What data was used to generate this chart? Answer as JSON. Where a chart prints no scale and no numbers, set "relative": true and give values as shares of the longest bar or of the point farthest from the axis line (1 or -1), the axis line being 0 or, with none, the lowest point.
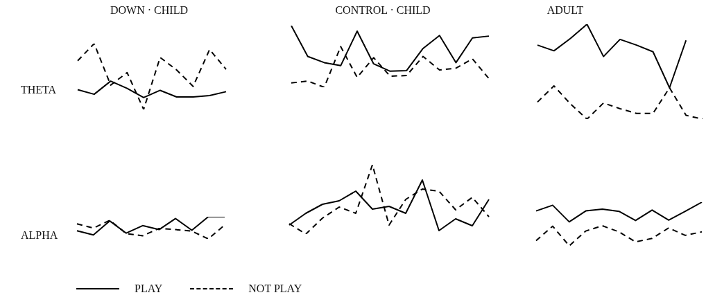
{
  "chart_data": [
    {
      "type": "line",
      "title": "DOWN · CHILD",
      "ylabel": "THETA",
      "relative": true,
      "categories": [
        null,
        null,
        null,
        null,
        null,
        null,
        null,
        null,
        null,
        null
      ],
      "series": [
        {
          "color": "#000000",
          "line_style": "solid",
          "values": [
            0.3,
            0.23,
            0.43,
            0.32,
            0.18,
            0.29,
            0.19,
            0.19,
            0.21,
            0.27
          ]
        },
        {
          "color": "#000000",
          "line_style": "dashed",
          "values": [
            0.74,
            1,
            0.37,
            0.56,
            0,
            0.79,
            0.6,
            0.35,
            0.91,
            0.61
          ]
        }
      ]
    },
    {
      "type": "line",
      "title": "CONTROL · CHILD",
      "relative": true,
      "categories": [
        null,
        null,
        null,
        null,
        null,
        null,
        null,
        null,
        null,
        null,
        null,
        null,
        null
      ],
      "series": [
        {
          "color": "#000000",
          "line_style": "solid",
          "values": [
            1,
            0.5,
            0.4,
            0.35,
            0.91,
            0.38,
            0.26,
            0.27,
            0.63,
            0.84,
            0.4,
            0.8,
            0.83
          ]
        },
        {
          "color": "#000000",
          "line_style": "dashed",
          "values": [
            0.07,
            0.1,
            0,
            0.66,
            0.16,
            0.48,
            0.18,
            0.19,
            0.5,
            0.28,
            0.31,
            0.46,
            0.14
          ]
        }
      ]
    },
    {
      "type": "line",
      "title": "ADULT",
      "relative": true,
      "categories": [
        null,
        null,
        null,
        null,
        null,
        null,
        null,
        null,
        null,
        null,
        null
      ],
      "series": [
        {
          "color": "#000000",
          "line_style": "solid",
          "values": [
            0.78,
            0.72,
            0.85,
            1,
            0.66,
            0.84,
            0.78,
            0.71,
            0.33,
            0.83,
            null
          ]
        },
        {
          "color": "#000000",
          "line_style": "dashed",
          "values": [
            0.18,
            0.35,
            0.16,
            0,
            0.17,
            0.11,
            0.06,
            0.06,
            0.33,
            0.04,
            0
          ]
        }
      ]
    },
    {
      "type": "line",
      "ylabel": "ALPHA",
      "relative": true,
      "legend": "bottom",
      "categories": [
        null,
        null,
        null,
        null,
        null,
        null,
        null,
        null,
        null,
        null
      ],
      "series": [
        {
          "name": "PLAY",
          "color": "#000000",
          "line_style": "solid",
          "values": [
            0.37,
            0.18,
            0.81,
            0.26,
            0.6,
            0.42,
            0.92,
            0.39,
            1,
            1
          ]
        },
        {
          "name": "NOT PLAY",
          "color": "#000000",
          "line_style": "dashed",
          "values": [
            0.68,
            0.49,
            0.84,
            0.24,
            0.14,
            0.47,
            0.42,
            0.35,
            0,
            0.63
          ]
        }
      ]
    },
    {
      "type": "line",
      "relative": true,
      "categories": [
        null,
        null,
        null,
        null,
        null,
        null,
        null,
        null,
        null,
        null,
        null,
        null,
        null
      ],
      "series": [
        {
          "color": "#000000",
          "line_style": "solid",
          "values": [
            0.13,
            0.3,
            0.43,
            0.48,
            0.62,
            0.36,
            0.4,
            0.3,
            0.78,
            0.05,
            0.22,
            0.12,
            0.5
          ]
        },
        {
          "color": "#000000",
          "line_style": "dashed",
          "values": [
            0.15,
            0,
            0.23,
            0.39,
            0.3,
            1,
            0.13,
            0.5,
            0.65,
            0.62,
            0.35,
            0.53,
            0.25
          ]
        }
      ]
    },
    {
      "type": "line",
      "relative": true,
      "categories": [
        null,
        null,
        null,
        null,
        null,
        null,
        null,
        null,
        null,
        null,
        null
      ],
      "series": [
        {
          "color": "#000000",
          "line_style": "solid",
          "values": [
            0.8,
            0.93,
            0.55,
            0.8,
            0.84,
            0.79,
            0.58,
            0.82,
            0.59,
            0.79,
            1
          ]
        },
        {
          "color": "#000000",
          "line_style": "dashed",
          "values": [
            0.12,
            0.45,
            0,
            0.34,
            0.46,
            0.32,
            0.09,
            0.17,
            0.41,
            0.24,
            0.32
          ]
        }
      ]
    }
  ]
}
